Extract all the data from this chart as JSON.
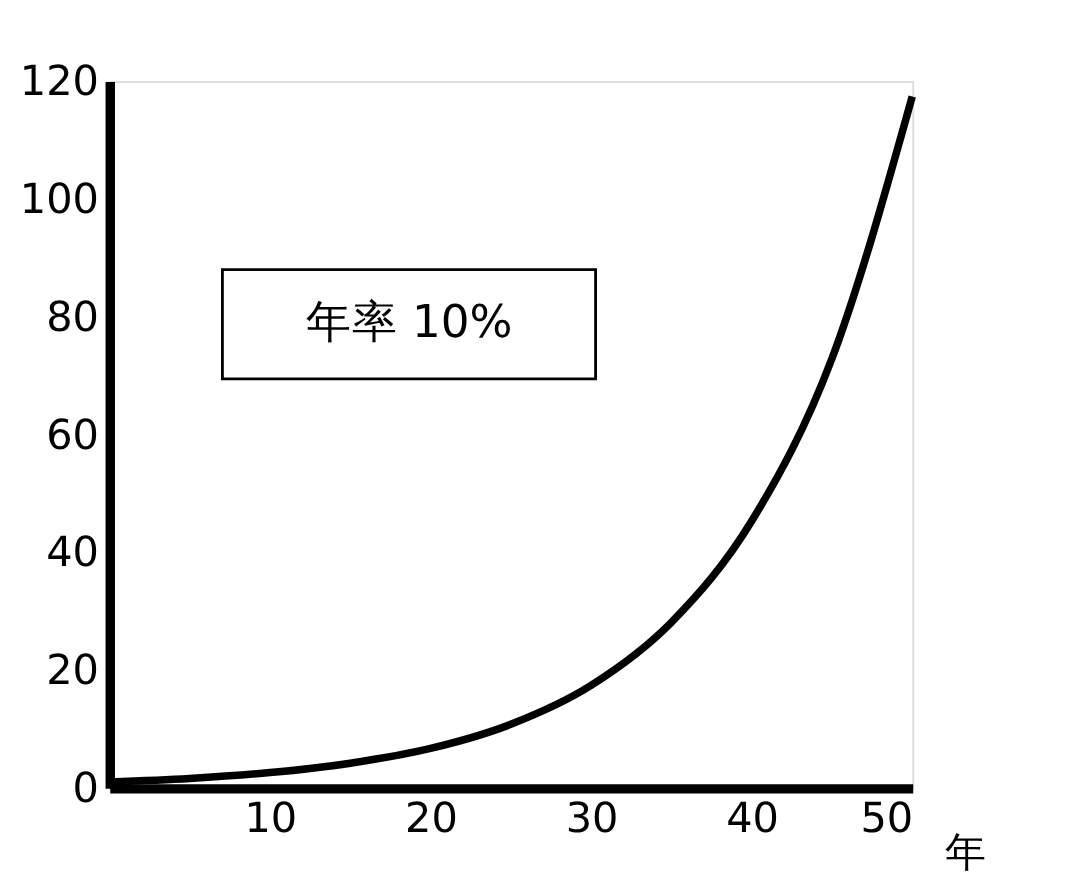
{
  "chart_data": {
    "type": "line",
    "xlabel": "年",
    "x": [
      0,
      5,
      10,
      15,
      20,
      25,
      30,
      35,
      40,
      45,
      50
    ],
    "series": [
      {
        "color": "#000000",
        "values": [
          1,
          1.6,
          2.6,
          4.2,
          6.7,
          10.8,
          17.4,
          28.1,
          45.3,
          72.9,
          117.4
        ]
      }
    ],
    "xlim": [
      0,
      50
    ],
    "xticks": [
      10,
      20,
      30,
      40,
      50
    ],
    "ylim": [
      0,
      120
    ],
    "yticks": [
      0,
      20,
      40,
      60,
      80,
      100,
      120
    ],
    "annotations": [
      "年率 10%"
    ],
    "grid": false,
    "legend": false,
    "marker": "none",
    "line_style": "solid"
  }
}
